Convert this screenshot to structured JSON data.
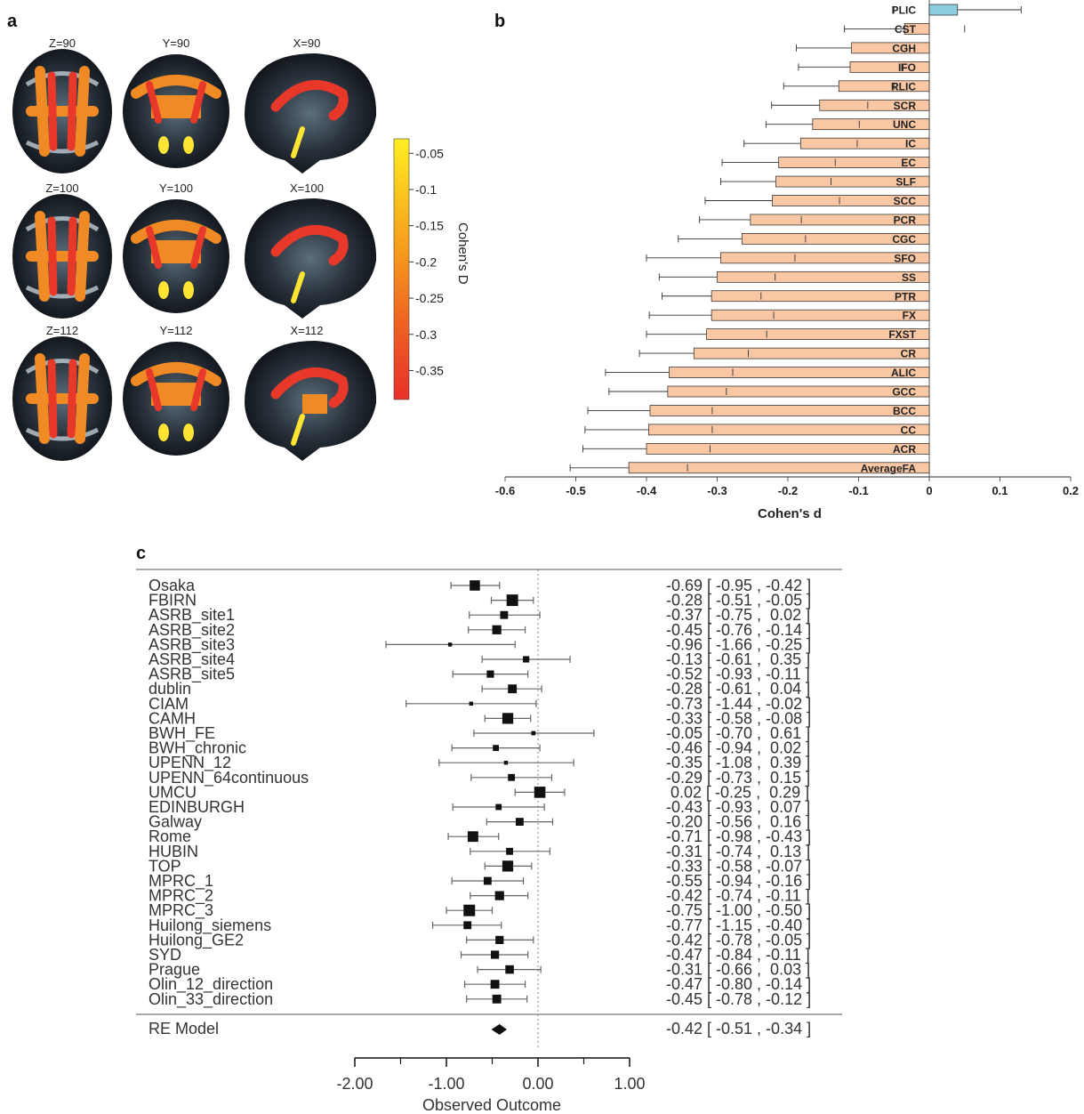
{
  "panel_a": {
    "label": "a",
    "slices": [
      {
        "label": "Z=90",
        "view": "axial",
        "level": 90
      },
      {
        "label": "Y=90",
        "view": "coronal",
        "level": 90
      },
      {
        "label": "X=90",
        "view": "sagittal",
        "level": 90
      },
      {
        "label": "Z=100",
        "view": "axial",
        "level": 100
      },
      {
        "label": "Y=100",
        "view": "coronal",
        "level": 100
      },
      {
        "label": "X=100",
        "view": "sagittal",
        "level": 100
      },
      {
        "label": "Z=112",
        "view": "axial",
        "level": 112
      },
      {
        "label": "Y=112",
        "view": "coronal",
        "level": 112
      },
      {
        "label": "X=112",
        "view": "sagittal",
        "level": 112
      }
    ],
    "colorbar": {
      "title": "Cohen's D",
      "ticks": [
        "-0.05",
        "-0.1",
        "-0.15",
        "-0.2",
        "-0.25",
        "-0.3",
        "-0.35"
      ],
      "range": [
        -0.39,
        -0.03
      ],
      "colors": [
        "#ffee22",
        "#f7a01c",
        "#ee5a23",
        "#e8302a"
      ]
    }
  },
  "panel_b": {
    "label": "b",
    "xlabel": "Cohen's d",
    "ticks": [
      "-0.6",
      "-0.5",
      "-0.4",
      "-0.3",
      "-0.2",
      "-0.1",
      "0",
      "0.1",
      "0.2"
    ],
    "colors": {
      "positive": "#8ecde0",
      "negative": "#f9c7a3",
      "edge": "#222222"
    }
  },
  "panel_c": {
    "label": "c",
    "xlabel": "Observed Outcome",
    "ticks": [
      "-2.00",
      "-1.00",
      "0.00",
      "1.00"
    ],
    "model_label": "RE Model",
    "model_text": "-0.42 [ -0.51 , -0.34 ]"
  },
  "chart_data": [
    {
      "type": "bar",
      "orientation": "horizontal",
      "xlabel": "Cohen's d",
      "xlim": [
        -0.6,
        0.2
      ],
      "categories": [
        "PLIC",
        "CST",
        "CGH",
        "IFO",
        "RLIC",
        "SCR",
        "UNC",
        "IC",
        "EC",
        "SLF",
        "SCC",
        "PCR",
        "CGC",
        "SFO",
        "SS",
        "PTR",
        "FX",
        "FXST",
        "CR",
        "ALIC",
        "GCC",
        "BCC",
        "CC",
        "ACR",
        "AverageFA"
      ],
      "values": [
        0.04,
        -0.035,
        -0.11,
        -0.112,
        -0.128,
        -0.155,
        -0.165,
        -0.182,
        -0.213,
        -0.217,
        -0.222,
        -0.253,
        -0.265,
        -0.295,
        -0.3,
        -0.308,
        -0.308,
        -0.315,
        -0.333,
        -0.368,
        -0.37,
        -0.395,
        -0.397,
        -0.4,
        -0.425
      ],
      "errors": [
        0.09,
        0.085,
        0.078,
        0.073,
        0.078,
        0.068,
        0.066,
        0.08,
        0.08,
        0.078,
        0.095,
        0.072,
        0.09,
        0.105,
        0.082,
        0.07,
        0.088,
        0.085,
        0.077,
        0.09,
        0.083,
        0.088,
        0.09,
        0.09,
        0.083
      ]
    },
    {
      "type": "forest",
      "xlabel": "Observed Outcome",
      "xlim": [
        -2.0,
        1.0
      ],
      "studies": [
        {
          "name": "Osaka",
          "est": -0.69,
          "lo": -0.95,
          "hi": -0.42,
          "text": "-0.69 [ -0.95 , -0.42 ]",
          "w": 3.4
        },
        {
          "name": "FBIRN",
          "est": -0.28,
          "lo": -0.51,
          "hi": -0.05,
          "text": "-0.28 [ -0.51 , -0.05 ]",
          "w": 3.8
        },
        {
          "name": "ASRB_site1",
          "est": -0.37,
          "lo": -0.75,
          "hi": 0.02,
          "text": "-0.37 [ -0.75 ,  0.02 ]",
          "w": 2.6
        },
        {
          "name": "ASRB_site2",
          "est": -0.45,
          "lo": -0.76,
          "hi": -0.14,
          "text": "-0.45 [ -0.76 , -0.14 ]",
          "w": 3.0
        },
        {
          "name": "ASRB_site3",
          "est": -0.96,
          "lo": -1.66,
          "hi": -0.25,
          "text": "-0.96 [ -1.66 , -0.25 ]",
          "w": 1.3
        },
        {
          "name": "ASRB_site4",
          "est": -0.13,
          "lo": -0.61,
          "hi": 0.35,
          "text": "-0.13 [ -0.61 ,  0.35 ]",
          "w": 2.1
        },
        {
          "name": "ASRB_site5",
          "est": -0.52,
          "lo": -0.93,
          "hi": -0.11,
          "text": "-0.52 [ -0.93 , -0.11 ]",
          "w": 2.4
        },
        {
          "name": "dublin",
          "est": -0.28,
          "lo": -0.61,
          "hi": 0.04,
          "text": "-0.28 [ -0.61 ,  0.04 ]",
          "w": 2.9
        },
        {
          "name": "CIAM",
          "est": -0.73,
          "lo": -1.44,
          "hi": -0.02,
          "text": "-0.73 [ -1.44 , -0.02 ]",
          "w": 1.3
        },
        {
          "name": "CAMH",
          "est": -0.33,
          "lo": -0.58,
          "hi": -0.08,
          "text": "-0.33 [ -0.58 , -0.08 ]",
          "w": 3.6
        },
        {
          "name": "BWH_FE",
          "est": -0.05,
          "lo": -0.7,
          "hi": 0.61,
          "text": "-0.05 [ -0.70 ,  0.61 ]",
          "w": 1.4
        },
        {
          "name": "BWH_chronic",
          "est": -0.46,
          "lo": -0.94,
          "hi": 0.02,
          "text": "-0.46 [ -0.94 ,  0.02 ]",
          "w": 2.0
        },
        {
          "name": "UPENN_12",
          "est": -0.35,
          "lo": -1.08,
          "hi": 0.39,
          "text": "-0.35 [ -1.08 ,  0.39 ]",
          "w": 1.3
        },
        {
          "name": "UPENN_64continuous",
          "est": -0.29,
          "lo": -0.73,
          "hi": 0.15,
          "text": "-0.29 [ -0.73 ,  0.15 ]",
          "w": 2.3
        },
        {
          "name": "UMCU",
          "est": 0.02,
          "lo": -0.25,
          "hi": 0.29,
          "text": " 0.02 [ -0.25 ,  0.29 ]",
          "w": 3.7
        },
        {
          "name": "EDINBURGH",
          "est": -0.43,
          "lo": -0.93,
          "hi": 0.07,
          "text": "-0.43 [ -0.93 ,  0.07 ]",
          "w": 2.0
        },
        {
          "name": "Galway",
          "est": -0.2,
          "lo": -0.56,
          "hi": 0.16,
          "text": "-0.20 [ -0.56 ,  0.16 ]",
          "w": 2.6
        },
        {
          "name": "Rome",
          "est": -0.71,
          "lo": -0.98,
          "hi": -0.43,
          "text": "-0.71 [ -0.98 , -0.43 ]",
          "w": 3.5
        },
        {
          "name": "HUBIN",
          "est": -0.31,
          "lo": -0.74,
          "hi": 0.13,
          "text": "-0.31 [ -0.74 ,  0.13 ]",
          "w": 2.3
        },
        {
          "name": "TOP",
          "est": -0.33,
          "lo": -0.58,
          "hi": -0.07,
          "text": "-0.33 [ -0.58 , -0.07 ]",
          "w": 3.6
        },
        {
          "name": "MPRC_1",
          "est": -0.55,
          "lo": -0.94,
          "hi": -0.16,
          "text": "-0.55 [ -0.94 , -0.16 ]",
          "w": 2.6
        },
        {
          "name": "MPRC_2",
          "est": -0.42,
          "lo": -0.74,
          "hi": -0.11,
          "text": "-0.42 [ -0.74 , -0.11 ]",
          "w": 3.0
        },
        {
          "name": "MPRC_3",
          "est": -0.75,
          "lo": -1.0,
          "hi": -0.5,
          "text": "-0.75 [ -1.00 , -0.50 ]",
          "w": 3.8
        },
        {
          "name": "Huilong_siemens",
          "est": -0.77,
          "lo": -1.15,
          "hi": -0.4,
          "text": "-0.77 [ -1.15 , -0.40 ]",
          "w": 2.6
        },
        {
          "name": "Huilong_GE2",
          "est": -0.42,
          "lo": -0.78,
          "hi": -0.05,
          "text": "-0.42 [ -0.78 , -0.05 ]",
          "w": 2.7
        },
        {
          "name": "SYD",
          "est": -0.47,
          "lo": -0.84,
          "hi": -0.11,
          "text": "-0.47 [ -0.84 , -0.11 ]",
          "w": 2.7
        },
        {
          "name": "Prague",
          "est": -0.31,
          "lo": -0.66,
          "hi": 0.03,
          "text": "-0.31 [ -0.66 ,  0.03 ]",
          "w": 2.8
        },
        {
          "name": "Olin_12_direction",
          "est": -0.47,
          "lo": -0.8,
          "hi": -0.14,
          "text": "-0.47 [ -0.80 , -0.14 ]",
          "w": 2.9
        },
        {
          "name": "Olin_33_direction",
          "est": -0.45,
          "lo": -0.78,
          "hi": -0.12,
          "text": "-0.45 [ -0.78 , -0.12 ]",
          "w": 2.9
        }
      ],
      "model": {
        "name": "RE Model",
        "est": -0.42,
        "lo": -0.51,
        "hi": -0.34
      }
    }
  ]
}
